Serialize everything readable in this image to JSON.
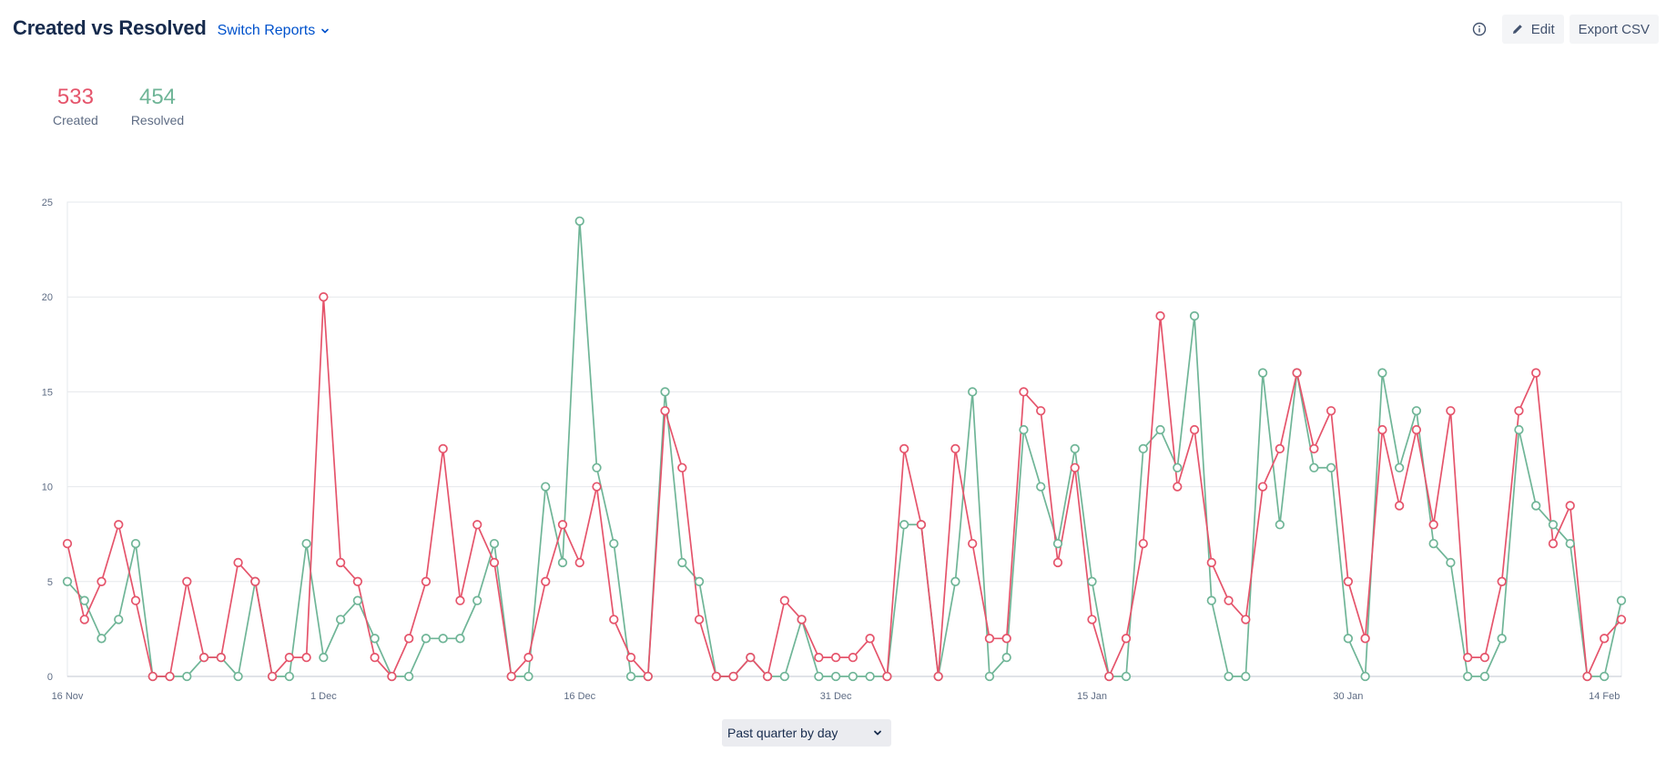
{
  "header": {
    "title": "Created vs Resolved",
    "switch_label": "Switch Reports"
  },
  "toolbar": {
    "edit_label": "Edit",
    "export_label": "Export CSV"
  },
  "stats": {
    "created": {
      "value": "533",
      "label": "Created"
    },
    "resolved": {
      "value": "454",
      "label": "Resolved"
    }
  },
  "range_select": {
    "value": "Past quarter by day"
  },
  "colors": {
    "created": "#e5546b",
    "resolved": "#6fb597",
    "grid": "#e6e8ec",
    "axis_text": "#5e6c84"
  },
  "chart_data": {
    "type": "line",
    "title": "",
    "xlabel": "",
    "ylabel": "",
    "ylim": [
      0,
      25
    ],
    "y_ticks": [
      0,
      5,
      10,
      15,
      20,
      25
    ],
    "x_tick_labels": [
      {
        "index": 0,
        "label": "16 Nov"
      },
      {
        "index": 15,
        "label": "1 Dec"
      },
      {
        "index": 30,
        "label": "16 Dec"
      },
      {
        "index": 45,
        "label": "31 Dec"
      },
      {
        "index": 60,
        "label": "15 Jan"
      },
      {
        "index": 75,
        "label": "30 Jan"
      },
      {
        "index": 90,
        "label": "14 Feb"
      }
    ],
    "x_start": "16 Nov",
    "grid": true,
    "series": [
      {
        "name": "Created",
        "values": [
          7,
          3,
          5,
          8,
          4,
          0,
          0,
          5,
          1,
          1,
          6,
          5,
          0,
          1,
          1,
          20,
          6,
          5,
          1,
          0,
          2,
          5,
          12,
          4,
          8,
          6,
          0,
          1,
          5,
          8,
          6,
          10,
          3,
          1,
          0,
          14,
          11,
          3,
          0,
          0,
          1,
          0,
          4,
          3,
          1,
          1,
          1,
          2,
          0,
          12,
          8,
          0,
          12,
          7,
          2,
          2,
          15,
          14,
          6,
          11,
          3,
          0,
          2,
          7,
          19,
          10,
          13,
          6,
          4,
          3,
          10,
          12,
          16,
          12,
          14,
          5,
          2,
          13,
          9,
          13,
          8,
          14,
          1,
          1,
          5,
          14,
          16,
          7,
          9,
          0,
          2,
          3
        ]
      },
      {
        "name": "Resolved",
        "values": [
          5,
          4,
          2,
          3,
          7,
          0,
          0,
          0,
          1,
          1,
          0,
          5,
          0,
          0,
          7,
          1,
          3,
          4,
          2,
          0,
          0,
          2,
          2,
          2,
          4,
          7,
          0,
          0,
          10,
          6,
          24,
          11,
          7,
          0,
          0,
          15,
          6,
          5,
          0,
          0,
          1,
          0,
          0,
          3,
          0,
          0,
          0,
          0,
          0,
          8,
          8,
          0,
          5,
          15,
          0,
          1,
          13,
          10,
          7,
          12,
          5,
          0,
          0,
          12,
          13,
          11,
          19,
          4,
          0,
          0,
          16,
          8,
          16,
          11,
          11,
          2,
          0,
          16,
          11,
          14,
          7,
          6,
          0,
          0,
          2,
          13,
          9,
          8,
          7,
          0,
          0,
          4
        ]
      }
    ]
  }
}
